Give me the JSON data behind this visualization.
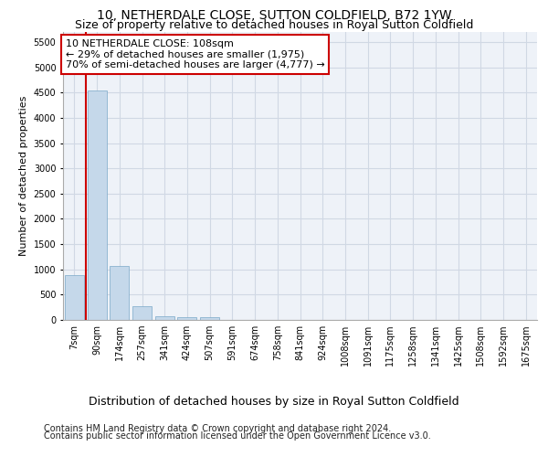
{
  "title1": "10, NETHERDALE CLOSE, SUTTON COLDFIELD, B72 1YW",
  "title2": "Size of property relative to detached houses in Royal Sutton Coldfield",
  "xlabel": "Distribution of detached houses by size in Royal Sutton Coldfield",
  "ylabel": "Number of detached properties",
  "footnote1": "Contains HM Land Registry data © Crown copyright and database right 2024.",
  "footnote2": "Contains public sector information licensed under the Open Government Licence v3.0.",
  "annotation_line1": "10 NETHERDALE CLOSE: 108sqm",
  "annotation_line2": "← 29% of detached houses are smaller (1,975)",
  "annotation_line3": "70% of semi-detached houses are larger (4,777) →",
  "bar_labels": [
    "7sqm",
    "90sqm",
    "174sqm",
    "257sqm",
    "341sqm",
    "424sqm",
    "507sqm",
    "591sqm",
    "674sqm",
    "758sqm",
    "841sqm",
    "924sqm",
    "1008sqm",
    "1091sqm",
    "1175sqm",
    "1258sqm",
    "1341sqm",
    "1425sqm",
    "1508sqm",
    "1592sqm",
    "1675sqm"
  ],
  "bar_values": [
    880,
    4540,
    1060,
    270,
    80,
    60,
    55,
    0,
    0,
    0,
    0,
    0,
    0,
    0,
    0,
    0,
    0,
    0,
    0,
    0,
    0
  ],
  "bar_color": "#c5d8ea",
  "bar_edge_color": "#7aa8c8",
  "highlight_color": "#cc0000",
  "red_line_x": 1.5,
  "ylim": [
    0,
    5700
  ],
  "yticks": [
    0,
    500,
    1000,
    1500,
    2000,
    2500,
    3000,
    3500,
    4000,
    4500,
    5000,
    5500
  ],
  "grid_color": "#d0d8e4",
  "background_color": "#eef2f8",
  "annotation_box_color": "#ffffff",
  "annotation_box_edge": "#cc0000",
  "title1_fontsize": 10,
  "title2_fontsize": 9,
  "footnote_fontsize": 7,
  "annotation_fontsize": 8,
  "xlabel_fontsize": 9,
  "ylabel_fontsize": 8,
  "tick_fontsize": 7
}
